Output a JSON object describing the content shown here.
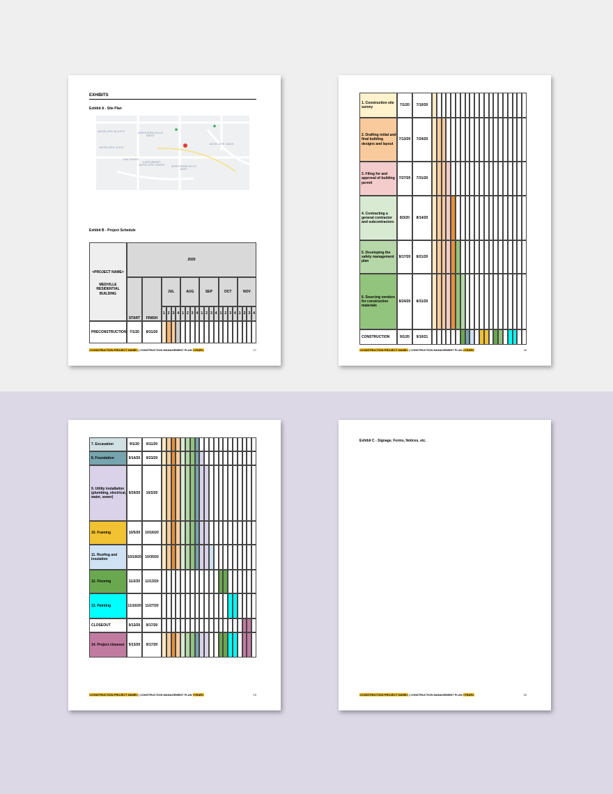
{
  "footer": {
    "project": "<CONSTRUCTION PROJECT NAME>",
    "plan": "| CONSTRUCTION MANAGEMENT PLAN",
    "year": "<YEAR>"
  },
  "page17": {
    "heading": "EXHIBITS",
    "exhibit_a": "Exhibit A - Site Plan",
    "map_labels": [
      "ANTELOPE BLUFFS",
      "NORTHERN HILLS WEST",
      "ANTELOPE VISTA",
      "OAK RIDGE",
      "LARCHMONT ANTELOPE CREEK",
      "NORTHERN HILLS EAST",
      "ANTELOPE OAKS"
    ],
    "exhibit_b": "Exhibit B - Project Schedule",
    "schedule": {
      "project": "<PROJECT NAME>",
      "building": "MEDVILLE RESIDENTIAL BUILDING",
      "year": "2020",
      "start": "START",
      "finish": "FINISH",
      "months": [
        "JUL",
        "AUG",
        "SEP",
        "OCT",
        "NOV"
      ],
      "weeks": [
        "1",
        "2",
        "3",
        "4"
      ],
      "rows": [
        {
          "task": "PRECONSTRUCTION",
          "start": "7/1/20",
          "finish": "8/31/20",
          "color": "#ffffff",
          "cells": [
            "#fde5c8",
            "#f6b26b",
            "#f9cb9c",
            "#cccccc"
          ]
        }
      ]
    },
    "page_number": "17"
  },
  "page18": {
    "rows": [
      {
        "task": "1. Construction site survey",
        "start": "7/1/20",
        "finish": "7/10/20",
        "color": "#fff2cc",
        "cells": [
          "#fde9c4"
        ]
      },
      {
        "task": "2. Drafting initial and final building designs and layout",
        "start": "7/13/20",
        "finish": "7/24/20",
        "color": "#f9cb9c",
        "cells": [
          "#fde9c4",
          "#f9cb9c",
          "#f9cb9c"
        ]
      },
      {
        "task": "3. Filing for and approval of building permit",
        "start": "7/27/20",
        "finish": "7/31/20",
        "color": "#f4cccc",
        "cells": [
          "#fde9c4",
          "#f9cb9c",
          "#f9cb9c",
          "#f4cccc"
        ]
      },
      {
        "task": "4. Contracting a general contractor and subcontractors",
        "start": "8/3/20",
        "finish": "8/14/20",
        "color": "#d9ead3",
        "cells": [
          "#fde9c4",
          "#f9cb9c",
          "#f9cb9c",
          "#f4cccc",
          "#e69138"
        ]
      },
      {
        "task": "5. Developing the safety management plan",
        "start": "8/17/20",
        "finish": "8/21/20",
        "color": "#b6d7a8",
        "cells": [
          "#fde9c4",
          "#f9cb9c",
          "#f9cb9c",
          "#f4cccc",
          "#e69138",
          "#93c47d"
        ]
      },
      {
        "task": "6. Sourcing vendors for construction materials",
        "start": "8/24/20",
        "finish": "8/31/20",
        "color": "#93c47d",
        "cells": [
          "#fde9c4",
          "#f9cb9c",
          "#f9cb9c",
          "#f4cccc",
          "#e69138",
          "#93c47d",
          "#b6d7a8"
        ]
      },
      {
        "task": "CONSTRUCTION",
        "start": "9/1/20",
        "finish": "9/10/21",
        "color": "#ffffff",
        "cells": [
          null,
          null,
          null,
          null,
          null,
          null,
          "#6aa84f",
          "#76a5af",
          "#cfe2f3",
          null,
          "#f1c232",
          "#f1c232",
          null,
          "#6aa84f",
          "#93c47d",
          null,
          "#00ffff",
          "#00ffff"
        ]
      }
    ],
    "page_number": "18"
  },
  "page19": {
    "rows": [
      {
        "task": "7. Excavation",
        "start": "9/1/20",
        "finish": "9/11/20",
        "color": "#d0e0e3",
        "cells": [
          "#fde9c4",
          "#f9cb9c",
          "#e69138",
          "#f9cb9c",
          "#d9ead3",
          "#b6d7a8",
          "#93c47d",
          "#76a5af"
        ]
      },
      {
        "task": "8. Foundation",
        "start": "9/14/20",
        "finish": "9/23/20",
        "color": "#76a5af",
        "cells": [
          "#fde9c4",
          "#f9cb9c",
          "#e69138",
          "#f9cb9c",
          "#d9ead3",
          "#b6d7a8",
          "#93c47d",
          "#76a5af",
          "#d9d2e9"
        ]
      },
      {
        "task": "9. Utility installation (plumbing, electrical, water, sewer)",
        "start": "9/24/20",
        "finish": "10/2/20",
        "color": "#d9d2e9",
        "cells": [
          "#fde9c4",
          "#f9cb9c",
          "#e69138",
          "#f9cb9c",
          "#d9ead3",
          "#b6d7a8",
          "#93c47d",
          "#76a5af",
          "#d9d2e9",
          "#d9d2e9"
        ]
      },
      {
        "task": "10. Framing",
        "start": "10/5/20",
        "finish": "10/16/20",
        "color": "#f1c232",
        "cells": [
          "#fde9c4",
          "#f9cb9c",
          "#e69138",
          "#f9cb9c",
          "#d9ead3",
          "#b6d7a8",
          "#93c47d",
          "#76a5af",
          "#d9d2e9",
          "#d9d2e9"
        ]
      },
      {
        "task": "11. Roofing and insulation",
        "start": "10/19/20",
        "finish": "10/30/20",
        "color": "#cfe2f3",
        "cells": [
          "#fde9c4",
          "#f9cb9c",
          "#e69138",
          "#f9cb9c",
          "#d9ead3",
          "#b6d7a8",
          "#93c47d",
          "#76a5af",
          "#d9d2e9",
          "#d9d2e9",
          "#cfe2f3"
        ]
      },
      {
        "task": "12. Flooring",
        "start": "11/2/20",
        "finish": "11/13/20",
        "color": "#6aa84f",
        "cells": [
          null,
          null,
          null,
          null,
          null,
          null,
          null,
          null,
          null,
          null,
          null,
          null,
          "#6aa84f",
          "#6aa84f"
        ]
      },
      {
        "task": "13. Painting",
        "start": "11/16/20",
        "finish": "11/27/20",
        "color": "#00ffff",
        "cells": [
          null,
          null,
          null,
          null,
          null,
          null,
          null,
          null,
          null,
          null,
          null,
          null,
          null,
          null,
          "#00ffff",
          "#00ffff"
        ]
      },
      {
        "task": "CLOSEOUT",
        "start": "9/13/20",
        "finish": "9/17/20",
        "color": "#ffffff",
        "cells": [
          null,
          null,
          null,
          null,
          null,
          null,
          null,
          null,
          null,
          null,
          null,
          null,
          null,
          null,
          null,
          null,
          null,
          "#c27ba0",
          "#c27ba0"
        ]
      },
      {
        "task": "14. Project closeout",
        "start": "9/13/20",
        "finish": "9/17/20",
        "color": "#c27ba0",
        "cells": [
          "#fde9c4",
          "#f9cb9c",
          "#e69138",
          "#f9cb9c",
          "#d9ead3",
          "#b6d7a8",
          "#93c47d",
          "#76a5af",
          "#d9d2e9",
          "#d9d2e9",
          null,
          null,
          "#6aa84f",
          "#6aa84f",
          "#00ffff",
          "#00ffff",
          null,
          "#c27ba0",
          "#c27ba0"
        ]
      }
    ],
    "page_number": "19"
  },
  "page20": {
    "exhibit_c": "Exhibit C - Signage, Forms, Notices, etc.",
    "page_number": "20"
  }
}
